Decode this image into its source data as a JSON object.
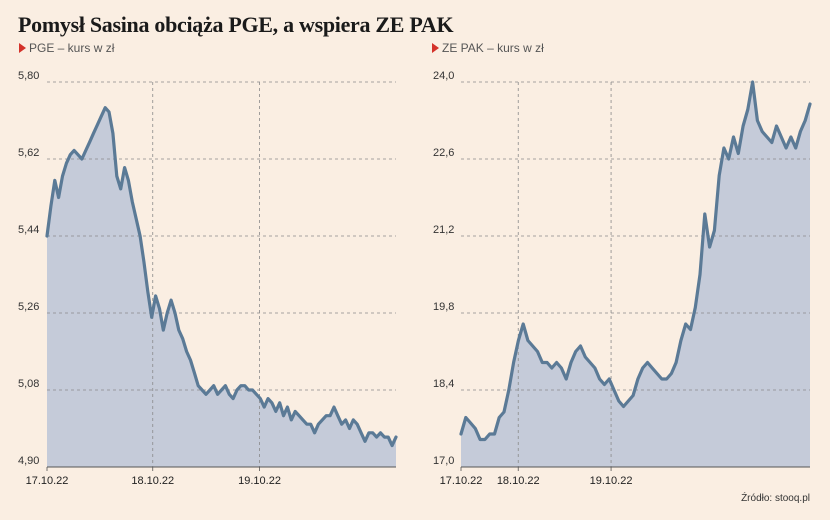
{
  "title": "Pomysł Sasina obciąża PGE, a wspiera ZE PAK",
  "source": "Źródło: stooq.pl",
  "colors": {
    "background": "#faeee2",
    "line": "#5b7a96",
    "area": "#c5cbd9",
    "grid": "#8a8a8a",
    "marker": "#d4322a"
  },
  "chart_data": [
    {
      "type": "area",
      "subtitle": "PGE – kurs w zł",
      "ylim": [
        4.9,
        5.8
      ],
      "yticks": [
        "5,80",
        "5,62",
        "5,44",
        "5,26",
        "5,08",
        "4,90"
      ],
      "ytick_values": [
        5.8,
        5.62,
        5.44,
        5.26,
        5.08,
        4.9
      ],
      "xticks": [
        {
          "label": "17.10.22",
          "t": 0.0
        },
        {
          "label": "18.10.22",
          "t": 0.303
        },
        {
          "label": "19.10.22",
          "t": 0.609
        }
      ],
      "grid": "dashed",
      "series": [
        {
          "name": "",
          "values": [
            5.44,
            5.51,
            5.57,
            5.53,
            5.58,
            5.61,
            5.63,
            5.64,
            5.63,
            5.62,
            5.64,
            5.66,
            5.68,
            5.7,
            5.72,
            5.74,
            5.73,
            5.68,
            5.58,
            5.55,
            5.6,
            5.57,
            5.52,
            5.48,
            5.44,
            5.38,
            5.31,
            5.25,
            5.3,
            5.27,
            5.22,
            5.26,
            5.29,
            5.26,
            5.22,
            5.2,
            5.17,
            5.15,
            5.12,
            5.09,
            5.08,
            5.07,
            5.08,
            5.09,
            5.07,
            5.08,
            5.09,
            5.07,
            5.06,
            5.08,
            5.09,
            5.09,
            5.08,
            5.08,
            5.07,
            5.06,
            5.04,
            5.06,
            5.05,
            5.03,
            5.05,
            5.02,
            5.04,
            5.01,
            5.03,
            5.02,
            5.01,
            5.0,
            5.0,
            4.98,
            5.0,
            5.01,
            5.02,
            5.02,
            5.04,
            5.02,
            5.0,
            5.01,
            4.99,
            5.01,
            5.0,
            4.98,
            4.96,
            4.98,
            4.98,
            4.97,
            4.98,
            4.97,
            4.97,
            4.95,
            4.97
          ]
        }
      ]
    },
    {
      "type": "area",
      "subtitle": "ZE PAK – kurs w zł",
      "ylim": [
        17.0,
        24.0
      ],
      "yticks": [
        "24,0",
        "22,6",
        "21,2",
        "19,8",
        "18,4",
        "17,0"
      ],
      "ytick_values": [
        24.0,
        22.6,
        21.2,
        19.8,
        18.4,
        17.0
      ],
      "xticks": [
        {
          "label": "17.10.22",
          "t": 0.0
        },
        {
          "label": "18.10.22",
          "t": 0.164
        },
        {
          "label": "19.10.22",
          "t": 0.43
        }
      ],
      "grid": "dashed",
      "series": [
        {
          "name": "",
          "values": [
            17.6,
            17.9,
            17.8,
            17.7,
            17.5,
            17.5,
            17.6,
            17.6,
            17.9,
            18.0,
            18.4,
            18.9,
            19.3,
            19.6,
            19.3,
            19.2,
            19.1,
            18.9,
            18.9,
            18.8,
            18.9,
            18.8,
            18.6,
            18.9,
            19.1,
            19.2,
            19.0,
            18.9,
            18.8,
            18.6,
            18.5,
            18.6,
            18.4,
            18.2,
            18.1,
            18.2,
            18.3,
            18.6,
            18.8,
            18.9,
            18.8,
            18.7,
            18.6,
            18.6,
            18.7,
            18.9,
            19.3,
            19.6,
            19.5,
            19.9,
            20.5,
            21.6,
            21.0,
            21.3,
            22.3,
            22.8,
            22.6,
            23.0,
            22.7,
            23.2,
            23.5,
            24.0,
            23.3,
            23.1,
            23.0,
            22.9,
            23.2,
            23.0,
            22.8,
            23.0,
            22.8,
            23.1,
            23.3,
            23.6
          ]
        }
      ]
    }
  ]
}
